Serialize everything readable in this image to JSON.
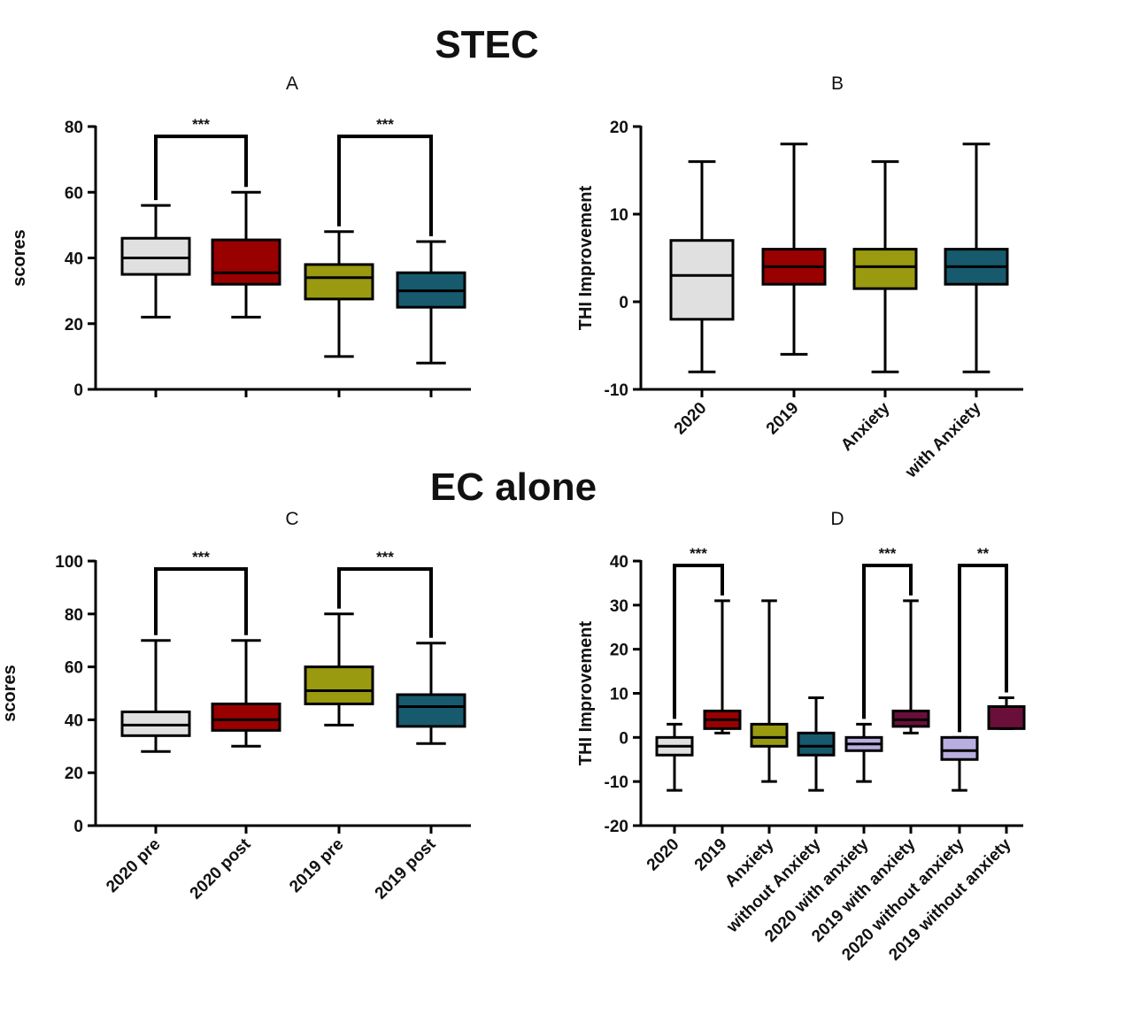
{
  "headings": {
    "top": "STEC",
    "bottom": "EC alone"
  },
  "chart_data": [
    {
      "id": "A",
      "type": "box",
      "title": "A",
      "ylabel": "scores",
      "ylim": [
        0,
        80
      ],
      "yticks": [
        0,
        20,
        40,
        60,
        80
      ],
      "categories": [
        "",
        "",
        "",
        ""
      ],
      "boxes": [
        {
          "min": 22,
          "q1": 35,
          "median": 40,
          "q3": 46,
          "max": 56,
          "color": "#e0e0e0"
        },
        {
          "min": 22,
          "q1": 32,
          "median": 35.5,
          "q3": 45.5,
          "max": 60,
          "color": "#990000"
        },
        {
          "min": 10,
          "q1": 27.5,
          "median": 34,
          "q3": 38,
          "max": 48,
          "color": "#9a9a10"
        },
        {
          "min": 8,
          "q1": 25,
          "median": 30,
          "q3": 35.5,
          "max": 45,
          "color": "#175a6e"
        }
      ],
      "significance": [
        {
          "from": 0,
          "to": 1,
          "label": "***",
          "y": 77
        },
        {
          "from": 2,
          "to": 3,
          "label": "***",
          "y": 77
        }
      ]
    },
    {
      "id": "B",
      "type": "box",
      "title": "B",
      "ylabel": "THI Improvement",
      "ylim": [
        -10,
        20
      ],
      "yticks": [
        -10,
        0,
        10,
        20
      ],
      "categories": [
        "2020",
        "2019",
        "Anxiety",
        "with Anxiety"
      ],
      "boxes": [
        {
          "min": -8,
          "q1": -2,
          "median": 3,
          "q3": 7,
          "max": 16,
          "color": "#e0e0e0"
        },
        {
          "min": -6,
          "q1": 2,
          "median": 4,
          "q3": 6,
          "max": 18,
          "color": "#990000"
        },
        {
          "min": -8,
          "q1": 1.5,
          "median": 4,
          "q3": 6,
          "max": 16,
          "color": "#9a9a10"
        },
        {
          "min": -8,
          "q1": 2,
          "median": 4,
          "q3": 6,
          "max": 18,
          "color": "#175a6e"
        }
      ],
      "significance": []
    },
    {
      "id": "C",
      "type": "box",
      "title": "C",
      "ylabel": "scores",
      "ylim": [
        0,
        100
      ],
      "yticks": [
        0,
        20,
        40,
        60,
        80,
        100
      ],
      "categories": [
        "2020 pre",
        "2020 post",
        "2019 pre",
        "2019 post"
      ],
      "boxes": [
        {
          "min": 28,
          "q1": 34,
          "median": 38,
          "q3": 43,
          "max": 70,
          "color": "#e0e0e0"
        },
        {
          "min": 30,
          "q1": 36,
          "median": 40,
          "q3": 46,
          "max": 70,
          "color": "#990000"
        },
        {
          "min": 38,
          "q1": 46,
          "median": 51,
          "q3": 60,
          "max": 80,
          "color": "#9a9a10"
        },
        {
          "min": 31,
          "q1": 37.5,
          "median": 45,
          "q3": 49.5,
          "max": 69,
          "color": "#175a6e"
        }
      ],
      "significance": [
        {
          "from": 0,
          "to": 1,
          "label": "***",
          "y": 97
        },
        {
          "from": 2,
          "to": 3,
          "label": "***",
          "y": 97
        }
      ]
    },
    {
      "id": "D",
      "type": "box",
      "title": "D",
      "ylabel": "THI Improvement",
      "ylim": [
        -20,
        40
      ],
      "yticks": [
        -20,
        -10,
        0,
        10,
        20,
        30,
        40
      ],
      "categories": [
        "2020",
        "2019",
        "Anxiety",
        "without Anxiety",
        "2020 with anxiety",
        "2019 with anxiety",
        "2020 without anxiety",
        "2019 without anxiety"
      ],
      "boxes": [
        {
          "min": -12,
          "q1": -4,
          "median": -2,
          "q3": 0,
          "max": 3,
          "color": "#e0e0e0"
        },
        {
          "min": 1,
          "q1": 2,
          "median": 4,
          "q3": 6,
          "max": 31,
          "color": "#990000"
        },
        {
          "min": -10,
          "q1": -2,
          "median": 0,
          "q3": 3,
          "max": 31,
          "color": "#9a9a10"
        },
        {
          "min": -12,
          "q1": -4,
          "median": -2,
          "q3": 1,
          "max": 9,
          "color": "#175a6e"
        },
        {
          "min": -10,
          "q1": -3,
          "median": -1.5,
          "q3": 0,
          "max": 3,
          "color": "#b9aee0"
        },
        {
          "min": 1,
          "q1": 2.5,
          "median": 4,
          "q3": 6,
          "max": 31,
          "color": "#6a0f3a"
        },
        {
          "min": -12,
          "q1": -5,
          "median": -3,
          "q3": 0,
          "max": 0,
          "color": "#b9aee0"
        },
        {
          "min": 2,
          "q1": 2,
          "median": 7,
          "q3": 7,
          "max": 9,
          "color": "#6a0f3a"
        }
      ],
      "significance": [
        {
          "from": 0,
          "to": 1,
          "label": "***",
          "y": 39
        },
        {
          "from": 4,
          "to": 5,
          "label": "***",
          "y": 39
        },
        {
          "from": 6,
          "to": 7,
          "label": "**",
          "y": 39
        }
      ]
    }
  ]
}
